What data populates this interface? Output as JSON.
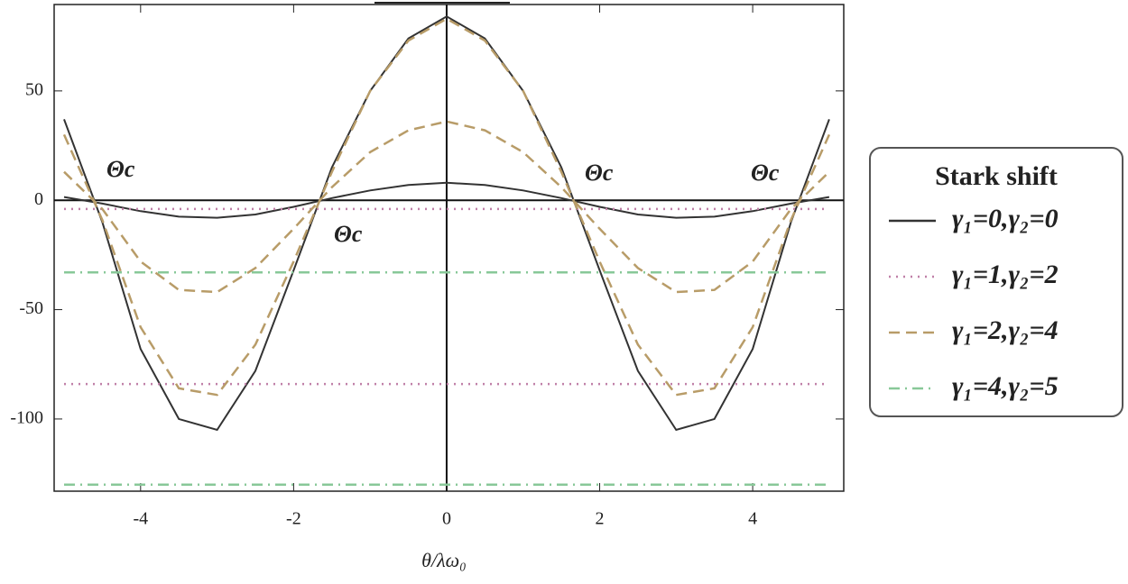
{
  "chart_data": {
    "type": "line",
    "x_label": "θ/λω₀",
    "x": [
      -5,
      -4.5,
      -4,
      -3.5,
      -3,
      -2.5,
      -2,
      -1.5,
      -1,
      -0.5,
      0,
      0.5,
      1,
      1.5,
      2,
      2.5,
      3,
      3.5,
      4,
      4.5,
      5
    ],
    "xlim": [
      -5.13,
      5.19
    ],
    "ylim": [
      -133,
      89.5
    ],
    "xticks": [
      -4,
      -2,
      0,
      2,
      4
    ],
    "yticks": [
      50,
      0,
      -50,
      -100
    ],
    "legend_title": "Stark shift",
    "legend_position": "right",
    "annotations": [
      "Θc",
      "Θc",
      "Θc",
      "Θc"
    ],
    "series": [
      {
        "name": "γ₁=0,γ₂=0",
        "color": "#333333",
        "dash": "solid",
        "curves": [
          {
            "values": [
              37,
              -10,
              -68,
              -100,
              -105,
              -78,
              -32,
              15,
              50,
              74,
              84,
              74,
              50,
              15,
              -32,
              -78,
              -105,
              -100,
              -68,
              -10,
              37
            ]
          },
          {
            "values": [
              1.5,
              -1.5,
              -5,
              -7.5,
              -8,
              -6.5,
              -3,
              1,
              4.5,
              7,
              8,
              7,
              4.5,
              1,
              -3,
              -6.5,
              -8,
              -7.5,
              -5,
              -1.5,
              1.5
            ]
          }
        ]
      },
      {
        "name": "γ₁=1,γ₂=2",
        "color": "#c080a8",
        "dash": "dotted",
        "curves": [
          {
            "values": [
              -4,
              -4,
              -4,
              -4,
              -4,
              -4,
              -4,
              -4,
              -4,
              -4,
              -4,
              -4,
              -4,
              -4,
              -4,
              -4,
              -4,
              -4,
              -4,
              -4,
              -4
            ]
          },
          {
            "values": [
              -84,
              -84,
              -84,
              -84,
              -84,
              -84,
              -84,
              -84,
              -84,
              -84,
              -84,
              -84,
              -84,
              -84,
              -84,
              -84,
              -84,
              -84,
              -84,
              -84,
              -84
            ]
          }
        ]
      },
      {
        "name": "γ₁=2,γ₂=4",
        "color": "#b89c68",
        "dash": "dashed",
        "curves": [
          {
            "values": [
              30,
              -9,
              -58,
              -86,
              -89,
              -66,
              -28,
              13,
              50,
              73,
              83,
              73,
              50,
              13,
              -28,
              -66,
              -89,
              -86,
              -58,
              -9,
              30
            ]
          },
          {
            "values": [
              13,
              -4,
              -28,
              -41,
              -42,
              -31,
              -13,
              6,
              22,
              32,
              36,
              32,
              22,
              6,
              -13,
              -31,
              -42,
              -41,
              -28,
              -4,
              13
            ]
          }
        ]
      },
      {
        "name": "γ₁=4,γ₂=5",
        "color": "#88c898",
        "dash": "dashdot",
        "curves": [
          {
            "values": [
              -33,
              -33,
              -33,
              -33,
              -33,
              -33,
              -33,
              -33,
              -33,
              -33,
              -33,
              -33,
              -33,
              -33,
              -33,
              -33,
              -33,
              -33,
              -33,
              -33,
              -33
            ]
          },
          {
            "values": [
              -130,
              -130,
              -130,
              -130,
              -130,
              -130,
              -130,
              -130,
              -130,
              -130,
              -130,
              -130,
              -130,
              -130,
              -130,
              -130,
              -130,
              -130,
              -130,
              -130,
              -130
            ]
          }
        ]
      }
    ]
  }
}
